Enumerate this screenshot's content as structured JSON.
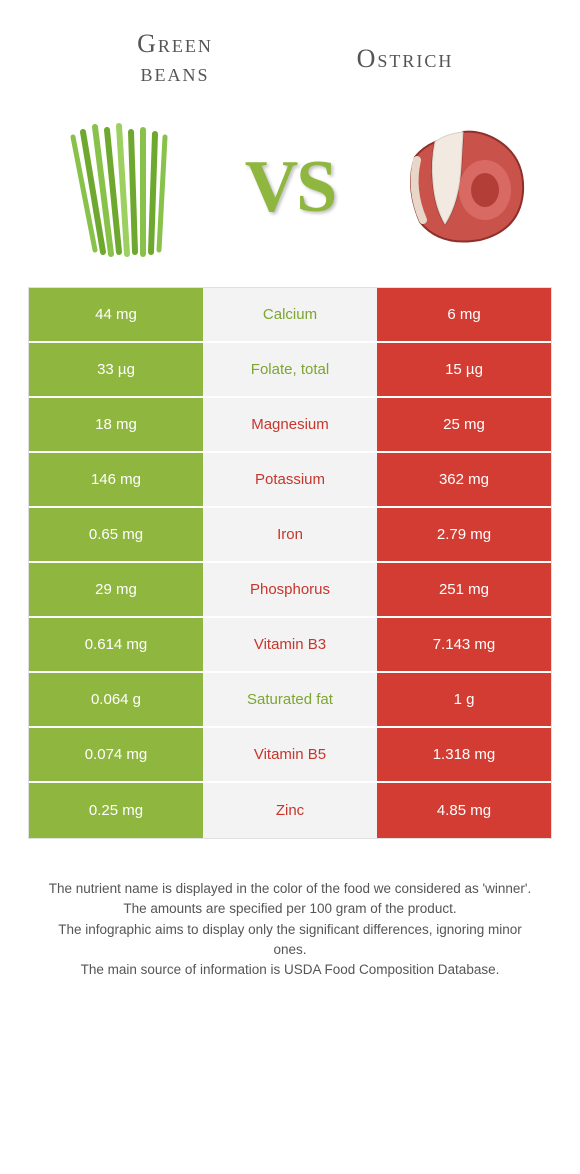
{
  "header": {
    "left_line1": "Green",
    "left_line2": "beans",
    "right": "Ostrich"
  },
  "vs_label": "VS",
  "colors": {
    "green": "#8fb63f",
    "red": "#d23c32",
    "mid_bg": "#f3f3f3",
    "label_green": "#7da52f",
    "label_red": "#c7362d",
    "body_text": "#555555"
  },
  "nutrients": [
    {
      "left": "44 mg",
      "name": "Calcium",
      "right": "6 mg",
      "winner": "left"
    },
    {
      "left": "33 µg",
      "name": "Folate, total",
      "right": "15 µg",
      "winner": "left"
    },
    {
      "left": "18 mg",
      "name": "Magnesium",
      "right": "25 mg",
      "winner": "right"
    },
    {
      "left": "146 mg",
      "name": "Potassium",
      "right": "362 mg",
      "winner": "right"
    },
    {
      "left": "0.65 mg",
      "name": "Iron",
      "right": "2.79 mg",
      "winner": "right"
    },
    {
      "left": "29 mg",
      "name": "Phosphorus",
      "right": "251 mg",
      "winner": "right"
    },
    {
      "left": "0.614 mg",
      "name": "Vitamin B3",
      "right": "7.143 mg",
      "winner": "right"
    },
    {
      "left": "0.064 g",
      "name": "Saturated fat",
      "right": "1 g",
      "winner": "left"
    },
    {
      "left": "0.074 mg",
      "name": "Vitamin B5",
      "right": "1.318 mg",
      "winner": "right"
    },
    {
      "left": "0.25 mg",
      "name": "Zinc",
      "right": "4.85 mg",
      "winner": "right"
    }
  ],
  "footnotes": [
    "The nutrient name is displayed in the color of the food we considered as 'winner'.",
    "The amounts are specified per 100 gram of the product.",
    "The infographic aims to display only the significant differences, ignoring minor ones.",
    "The main source of information is USDA Food Composition Database."
  ]
}
